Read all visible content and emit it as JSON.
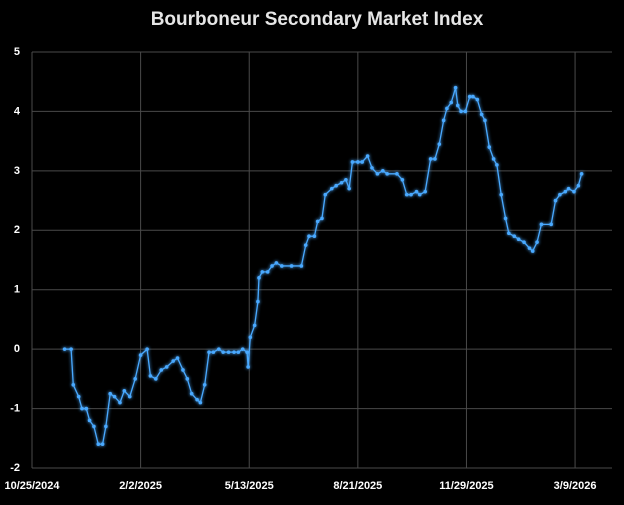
{
  "chart_data": {
    "type": "line",
    "title": "Bourboneur Secondary Market Index",
    "x": [
      "2024-11-24",
      "2024-11-30",
      "2024-12-02",
      "2024-12-07",
      "2024-12-10",
      "2024-12-14",
      "2024-12-17",
      "2024-12-21",
      "2024-12-25",
      "2024-12-29",
      "2025-01-01",
      "2025-01-05",
      "2025-01-09",
      "2025-01-14",
      "2025-01-18",
      "2025-01-23",
      "2025-01-28",
      "2025-02-02",
      "2025-02-08",
      "2025-02-11",
      "2025-02-16",
      "2025-02-21",
      "2025-02-26",
      "2025-03-04",
      "2025-03-08",
      "2025-03-13",
      "2025-03-17",
      "2025-03-21",
      "2025-03-26",
      "2025-03-29",
      "2025-04-02",
      "2025-04-06",
      "2025-04-10",
      "2025-04-15",
      "2025-04-19",
      "2025-04-24",
      "2025-04-29",
      "2025-05-03",
      "2025-05-07",
      "2025-05-11",
      "2025-05-12",
      "2025-05-14",
      "2025-05-18",
      "2025-05-21",
      "2025-05-22",
      "2025-05-25",
      "2025-05-30",
      "2025-06-03",
      "2025-06-07",
      "2025-06-12",
      "2025-06-21",
      "2025-06-30",
      "2025-07-04",
      "2025-07-07",
      "2025-07-12",
      "2025-07-15",
      "2025-07-19",
      "2025-07-22",
      "2025-07-28",
      "2025-08-01",
      "2025-08-06",
      "2025-08-10",
      "2025-08-13",
      "2025-08-16",
      "2025-08-21",
      "2025-08-25",
      "2025-08-30",
      "2025-09-03",
      "2025-09-08",
      "2025-09-13",
      "2025-09-17",
      "2025-09-26",
      "2025-10-01",
      "2025-10-05",
      "2025-10-09",
      "2025-10-14",
      "2025-10-17",
      "2025-10-22",
      "2025-10-27",
      "2025-10-31",
      "2025-11-04",
      "2025-11-08",
      "2025-11-11",
      "2025-11-15",
      "2025-11-19",
      "2025-11-21",
      "2025-11-24",
      "2025-11-28",
      "2025-12-02",
      "2025-12-05",
      "2025-12-09",
      "2025-12-13",
      "2025-12-16",
      "2025-12-20",
      "2025-12-24",
      "2025-12-27",
      "2025-12-31",
      "2026-01-04",
      "2026-01-07",
      "2026-01-12",
      "2026-01-16",
      "2026-01-21",
      "2026-01-26",
      "2026-01-29",
      "2026-02-02",
      "2026-02-06",
      "2026-02-15",
      "2026-02-19",
      "2026-02-23",
      "2026-02-28",
      "2026-03-03",
      "2026-03-08",
      "2026-03-12",
      "2026-03-15"
    ],
    "series": [
      {
        "color": "#49a9ff",
        "values": [
          0.0,
          0.0,
          -0.6,
          -0.8,
          -1.0,
          -1.0,
          -1.2,
          -1.3,
          -1.6,
          -1.6,
          -1.3,
          -0.75,
          -0.8,
          -0.9,
          -0.7,
          -0.8,
          -0.5,
          -0.1,
          0.0,
          -0.45,
          -0.5,
          -0.35,
          -0.3,
          -0.2,
          -0.15,
          -0.35,
          -0.5,
          -0.75,
          -0.85,
          -0.9,
          -0.6,
          -0.05,
          -0.05,
          0.0,
          -0.05,
          -0.05,
          -0.05,
          -0.05,
          0.0,
          -0.05,
          -0.3,
          0.2,
          0.4,
          0.8,
          1.2,
          1.3,
          1.3,
          1.4,
          1.45,
          1.4,
          1.4,
          1.4,
          1.75,
          1.9,
          1.9,
          2.15,
          2.2,
          2.6,
          2.7,
          2.75,
          2.8,
          2.85,
          2.7,
          3.15,
          3.15,
          3.15,
          3.25,
          3.05,
          2.95,
          3.0,
          2.95,
          2.95,
          2.85,
          2.6,
          2.6,
          2.65,
          2.6,
          2.65,
          3.2,
          3.2,
          3.45,
          3.85,
          4.05,
          4.15,
          4.4,
          4.1,
          4.0,
          4.0,
          4.25,
          4.25,
          4.2,
          3.95,
          3.85,
          3.4,
          3.2,
          3.1,
          2.6,
          2.2,
          1.95,
          1.9,
          1.85,
          1.8,
          1.7,
          1.65,
          1.8,
          2.1,
          2.1,
          2.5,
          2.6,
          2.65,
          2.7,
          2.65,
          2.75,
          2.95
        ]
      }
    ],
    "xlim": [
      "2024-10-25",
      "2026-04-12"
    ],
    "xticks": [
      {
        "value": "2024-10-25",
        "label": "10/25/2024"
      },
      {
        "value": "2025-02-02",
        "label": "2/2/2025"
      },
      {
        "value": "2025-05-13",
        "label": "5/13/2025"
      },
      {
        "value": "2025-08-21",
        "label": "8/21/2025"
      },
      {
        "value": "2025-11-29",
        "label": "11/29/2025"
      },
      {
        "value": "2026-03-09",
        "label": "3/9/2026"
      }
    ],
    "ylim": [
      -2,
      5
    ],
    "yticks": [
      -2,
      -1,
      0,
      1,
      2,
      3,
      4,
      5
    ],
    "grid": true
  }
}
